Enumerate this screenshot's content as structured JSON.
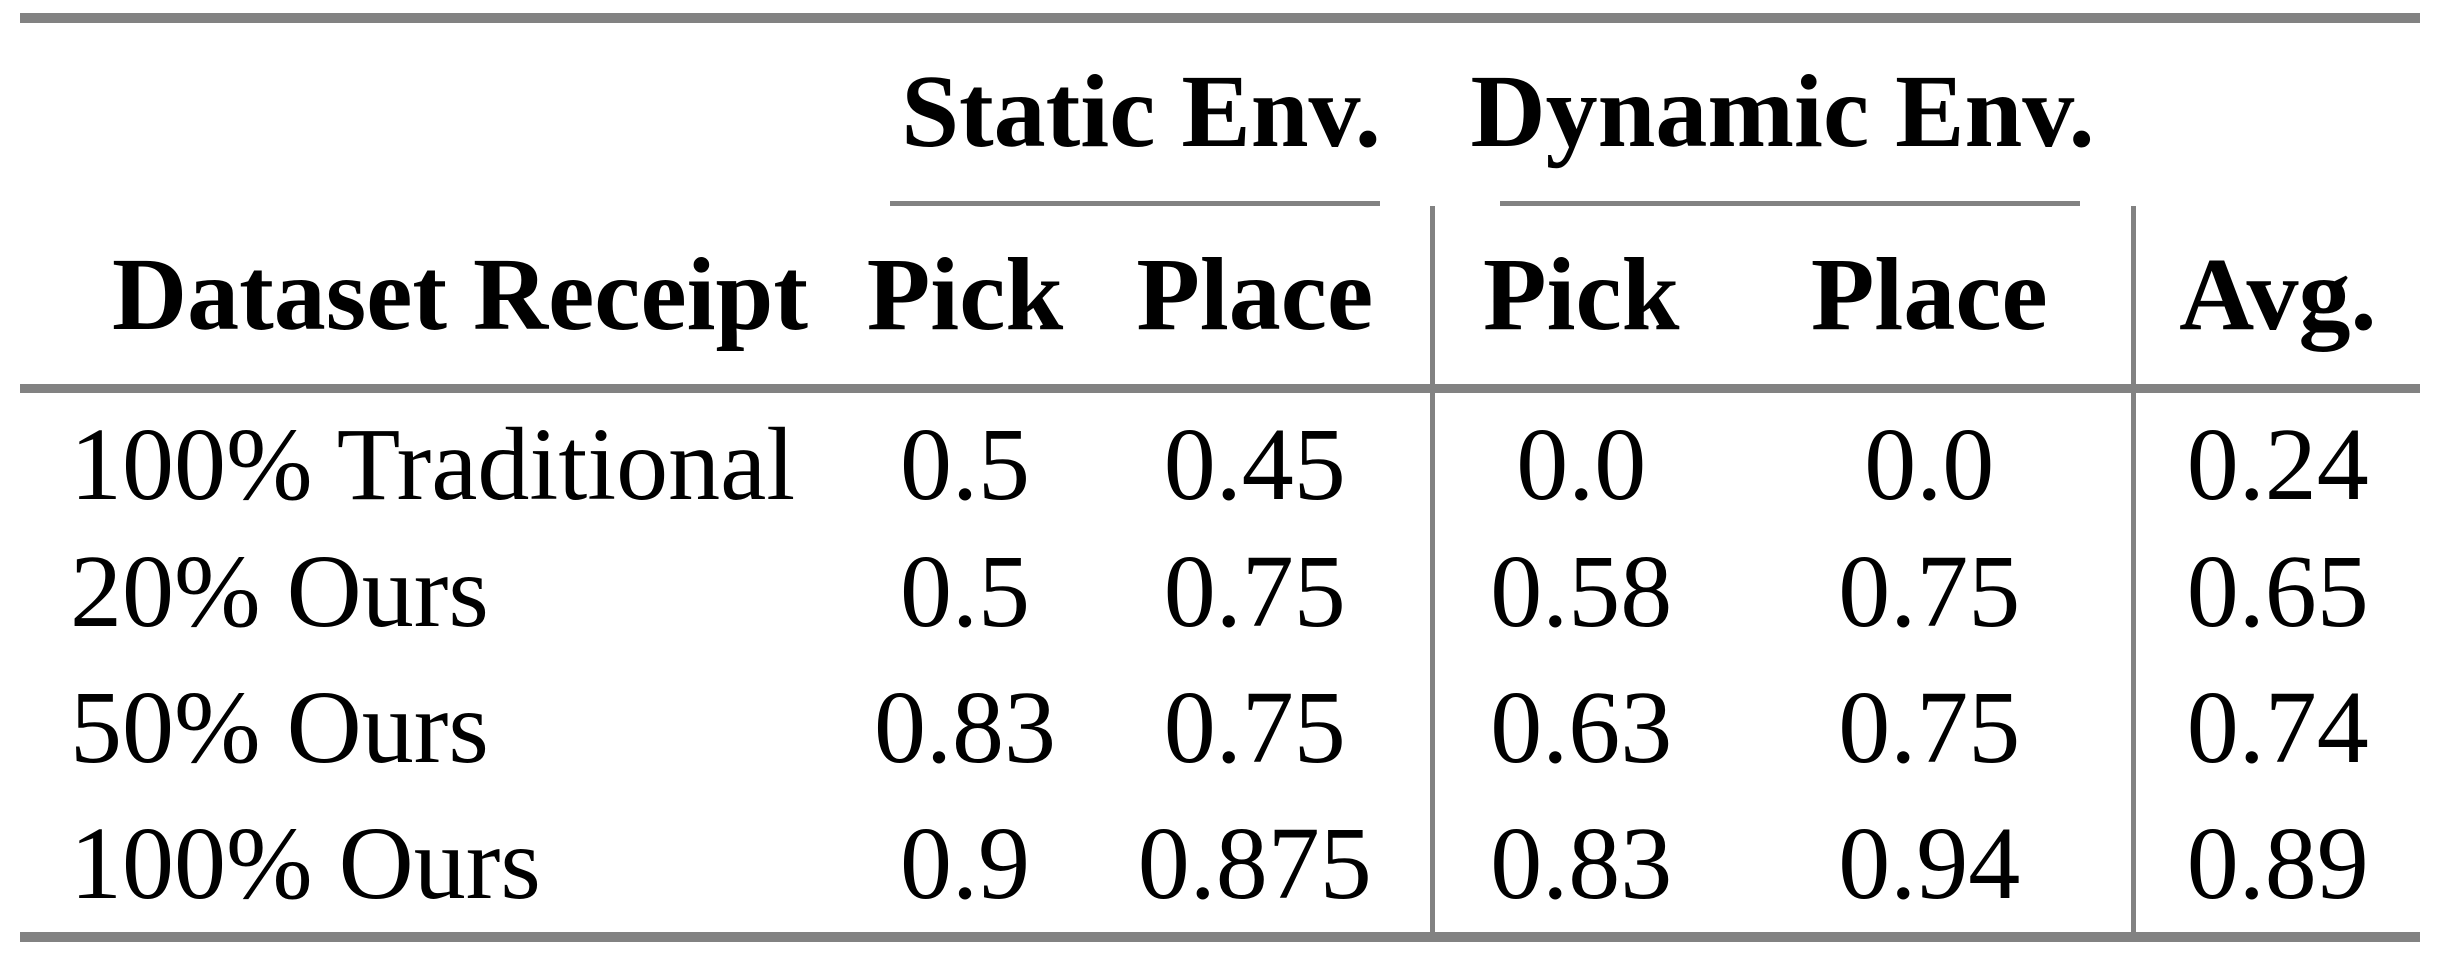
{
  "table": {
    "group_headers": {
      "static": "Static Env.",
      "dynamic": "Dynamic Env."
    },
    "column_headers": {
      "dataset": "Dataset Receipt",
      "static_pick": "Pick",
      "static_place": "Place",
      "dynamic_pick": "Pick",
      "dynamic_place": "Place",
      "avg": "Avg."
    },
    "rows": [
      {
        "dataset": "100% Traditional",
        "static_pick": "0.5",
        "static_place": "0.45",
        "dynamic_pick": "0.0",
        "dynamic_place": "0.0",
        "avg": "0.24"
      },
      {
        "dataset": "20% Ours",
        "static_pick": "0.5",
        "static_place": "0.75",
        "dynamic_pick": "0.58",
        "dynamic_place": "0.75",
        "avg": "0.65"
      },
      {
        "dataset": "50% Ours",
        "static_pick": "0.83",
        "static_place": "0.75",
        "dynamic_pick": "0.63",
        "dynamic_place": "0.75",
        "avg": "0.74"
      },
      {
        "dataset": "100% Ours",
        "static_pick": "0.9",
        "static_place": "0.875",
        "dynamic_pick": "0.83",
        "dynamic_place": "0.94",
        "avg": "0.89"
      }
    ],
    "rule_color": "#828282",
    "text_color": "#000000"
  },
  "chart_data": {
    "type": "table",
    "title": "",
    "column_groups": [
      "",
      "Static Env.",
      "Static Env.",
      "Dynamic Env.",
      "Dynamic Env.",
      ""
    ],
    "columns": [
      "Dataset Receipt",
      "Pick",
      "Place",
      "Pick",
      "Place",
      "Avg."
    ],
    "rows": [
      [
        "100% Traditional",
        0.5,
        0.45,
        0.0,
        0.0,
        0.24
      ],
      [
        "20% Ours",
        0.5,
        0.75,
        0.58,
        0.75,
        0.65
      ],
      [
        "50% Ours",
        0.83,
        0.75,
        0.63,
        0.75,
        0.74
      ],
      [
        "100% Ours",
        0.9,
        0.875,
        0.83,
        0.94,
        0.89
      ]
    ]
  }
}
